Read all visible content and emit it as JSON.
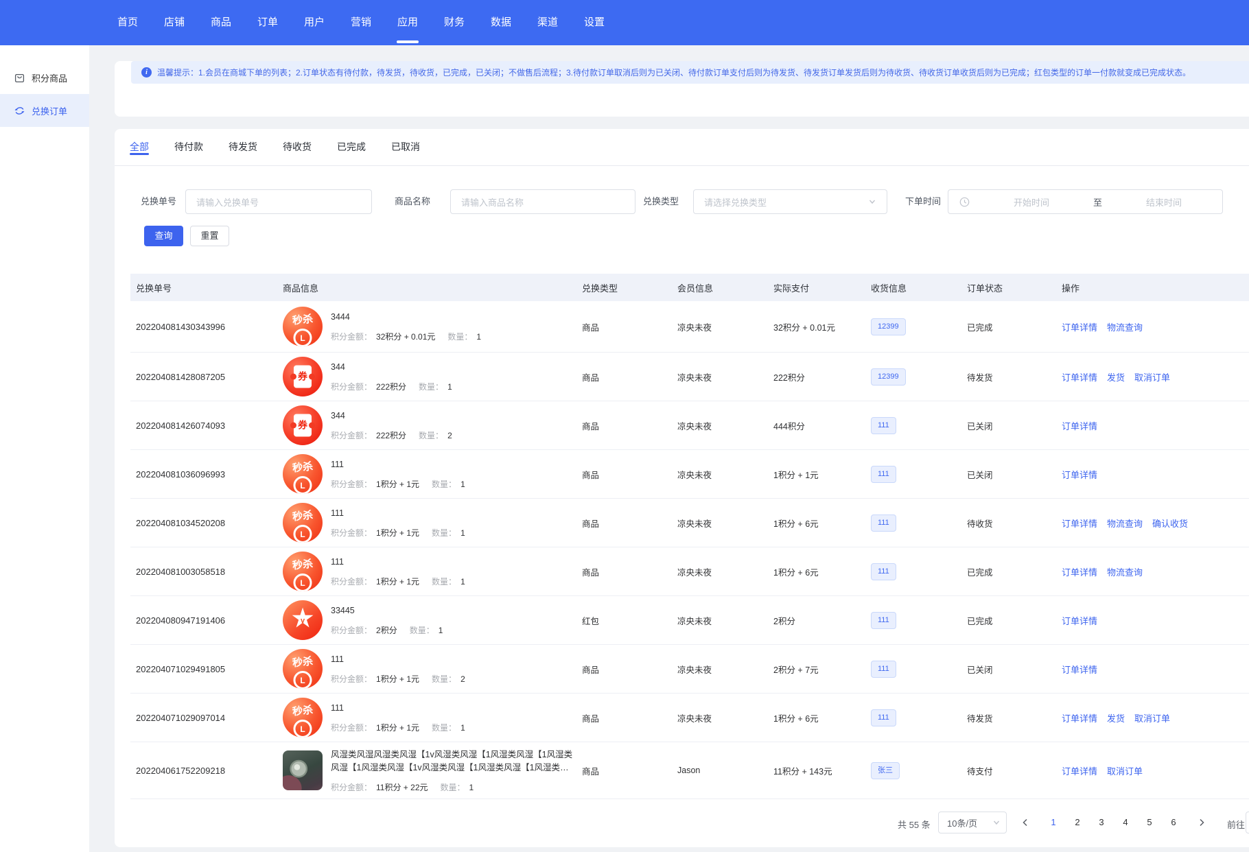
{
  "nav": {
    "items": [
      "首页",
      "店铺",
      "商品",
      "订单",
      "用户",
      "营销",
      "应用",
      "财务",
      "数据",
      "渠道",
      "设置"
    ],
    "active_index": 6
  },
  "sidebar": {
    "items": [
      {
        "label": "积分商品",
        "icon": "bag-icon",
        "active": false
      },
      {
        "label": "兑换订单",
        "icon": "exchange-icon",
        "active": true
      }
    ]
  },
  "alert": {
    "text": "温馨提示：1.会员在商城下单的列表；2.订单状态有待付款，待发货，待收货，已完成，已关闭；不做售后流程；3.待付款订单取消后则为已关闭、待付款订单支付后则为待发货、待发货订单发货后则为待收货、待收货订单收货后则为已完成；红包类型的订单一付款就变成已完成状态。"
  },
  "tabs": {
    "items": [
      "全部",
      "待付款",
      "待发货",
      "待收货",
      "已完成",
      "已取消"
    ],
    "active_index": 0
  },
  "filters": {
    "order_no_label": "兑换单号",
    "order_no_placeholder": "请输入兑换单号",
    "product_label": "商品名称",
    "product_placeholder": "请输入商品名称",
    "type_label": "兑换类型",
    "type_placeholder": "请选择兑换类型",
    "time_label": "下单时间",
    "start_placeholder": "开始时间",
    "to_label": "至",
    "end_placeholder": "结束时间",
    "search_label": "查询",
    "reset_label": "重置"
  },
  "table": {
    "columns": [
      "兑换单号",
      "商品信息",
      "兑换类型",
      "会员信息",
      "实际支付",
      "收货信息",
      "订单状态",
      "操作"
    ],
    "points_amount_label": "积分金额：",
    "quantity_label": "数量：",
    "rows": [
      {
        "no": "202204081430343996",
        "icon": "seckill",
        "name": "3444",
        "points": "32积分 + 0.01元",
        "qty": "1",
        "type": "商品",
        "member": "凉央未夜",
        "paid": "32积分 + 0.01元",
        "tag": "12399",
        "status": "已完成",
        "actions": [
          "订单详情",
          "物流查询"
        ]
      },
      {
        "no": "202204081428087205",
        "icon": "coupon",
        "name": "344",
        "points": "222积分",
        "qty": "1",
        "type": "商品",
        "member": "凉央未夜",
        "paid": "222积分",
        "tag": "12399",
        "status": "待发货",
        "actions": [
          "订单详情",
          "发货",
          "取消订单"
        ]
      },
      {
        "no": "202204081426074093",
        "icon": "coupon",
        "name": "344",
        "points": "222积分",
        "qty": "2",
        "type": "商品",
        "member": "凉央未夜",
        "paid": "444积分",
        "tag": "111",
        "status": "已关闭",
        "actions": [
          "订单详情"
        ]
      },
      {
        "no": "202204081036096993",
        "icon": "seckill",
        "name": "111",
        "points": "1积分 + 1元",
        "qty": "1",
        "type": "商品",
        "member": "凉央未夜",
        "paid": "1积分 + 1元",
        "tag": "111",
        "status": "已关闭",
        "actions": [
          "订单详情"
        ]
      },
      {
        "no": "202204081034520208",
        "icon": "seckill",
        "name": "111",
        "points": "1积分 + 1元",
        "qty": "1",
        "type": "商品",
        "member": "凉央未夜",
        "paid": "1积分 + 6元",
        "tag": "111",
        "status": "待收货",
        "actions": [
          "订单详情",
          "物流查询",
          "确认收货"
        ]
      },
      {
        "no": "202204081003058518",
        "icon": "seckill",
        "name": "111",
        "points": "1积分 + 1元",
        "qty": "1",
        "type": "商品",
        "member": "凉央未夜",
        "paid": "1积分 + 6元",
        "tag": "111",
        "status": "已完成",
        "actions": [
          "订单详情",
          "物流查询"
        ]
      },
      {
        "no": "202204080947191406",
        "icon": "star",
        "name": "33445",
        "points": "2积分",
        "qty": "1",
        "type": "红包",
        "member": "凉央未夜",
        "paid": "2积分",
        "tag": "111",
        "status": "已完成",
        "actions": [
          "订单详情"
        ]
      },
      {
        "no": "202204071029491805",
        "icon": "seckill",
        "name": "111",
        "points": "1积分 + 1元",
        "qty": "2",
        "type": "商品",
        "member": "凉央未夜",
        "paid": "2积分 + 7元",
        "tag": "111",
        "status": "已关闭",
        "actions": [
          "订单详情"
        ]
      },
      {
        "no": "202204071029097014",
        "icon": "seckill",
        "name": "111",
        "points": "1积分 + 1元",
        "qty": "1",
        "type": "商品",
        "member": "凉央未夜",
        "paid": "1积分 + 6元",
        "tag": "111",
        "status": "待发货",
        "actions": [
          "订单详情",
          "发货",
          "取消订单"
        ]
      },
      {
        "no": "202204061752209218",
        "icon": "photo",
        "name": "风湿类风湿风湿类风湿【1v风湿类风湿【1风湿类风湿【1风湿类风湿【1风湿类风湿【1v风湿类风湿【1风湿类风湿【1风湿类风湿...",
        "points": "11积分 + 22元",
        "qty": "1",
        "type": "商品",
        "member": "Jason",
        "paid": "11积分 + 143元",
        "tag": "张三",
        "status": "待支付",
        "actions": [
          "订单详情",
          "取消订单"
        ]
      }
    ]
  },
  "pagination": {
    "total": "共 55 条",
    "page_size": "10条/页",
    "pages": [
      "1",
      "2",
      "3",
      "4",
      "5",
      "6"
    ],
    "current": "1",
    "goto_label": "前往"
  }
}
